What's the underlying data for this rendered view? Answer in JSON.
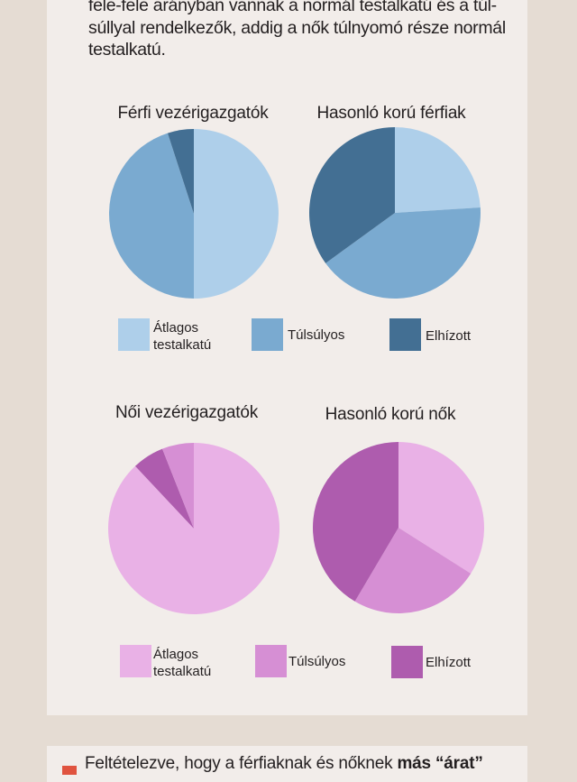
{
  "intro_lines": [
    "fele-fele arányban vannak a normál testalkatú és a túl-",
    "súllyal rendelkezők, addig a nők túlnyomó része normál",
    "testalkatú."
  ],
  "legend_men": [
    {
      "label_1": "Átlagos",
      "label_2": "testalkatú",
      "color": "#aecfea"
    },
    {
      "label_1": "Túlsúlyos",
      "color": "#7aaad0"
    },
    {
      "label_1": "Elhízott",
      "color": "#436f93"
    }
  ],
  "legend_women": [
    {
      "label_1": "Átlagos",
      "label_2": "testalkatú",
      "color": "#e9b1e6"
    },
    {
      "label_1": "Túlsúlyos",
      "color": "#d68fd4"
    },
    {
      "label_1": "Elhízott",
      "color": "#ae5cae"
    }
  ],
  "bottom_text": {
    "normal": "Feltételezve, hogy a férfiaknak és nőknek ",
    "bold": "más “árat”"
  },
  "chart_data": [
    {
      "type": "pie",
      "title": "Férfi vezérigazgatók",
      "categories": [
        "Átlagos testalkatú",
        "Túlsúlyos",
        "Elhízott"
      ],
      "values": [
        50,
        45,
        5
      ],
      "colors": [
        "#aecfea",
        "#7aaad0",
        "#436f93"
      ]
    },
    {
      "type": "pie",
      "title": "Hasonló korú férfiak",
      "categories": [
        "Átlagos testalkatú",
        "Túlsúlyos",
        "Elhízott"
      ],
      "values": [
        24,
        41,
        35
      ],
      "colors": [
        "#aecfea",
        "#7aaad0",
        "#436f93"
      ]
    },
    {
      "type": "pie",
      "title": "Női vezérigazgatók",
      "categories": [
        "Átlagos testalkatú",
        "Elhízott",
        "Túlsúlyos"
      ],
      "values": [
        88,
        6,
        6
      ],
      "colors": [
        "#e9b1e6",
        "#ae5cae",
        "#d68fd4"
      ]
    },
    {
      "type": "pie",
      "title": "Hasonló korú nők",
      "categories": [
        "Átlagos testalkatú",
        "Túlsúlyos",
        "Elhízott"
      ],
      "values": [
        34,
        24.5,
        41.5
      ],
      "colors": [
        "#e9b1e6",
        "#d68fd4",
        "#ae5cae"
      ]
    }
  ]
}
